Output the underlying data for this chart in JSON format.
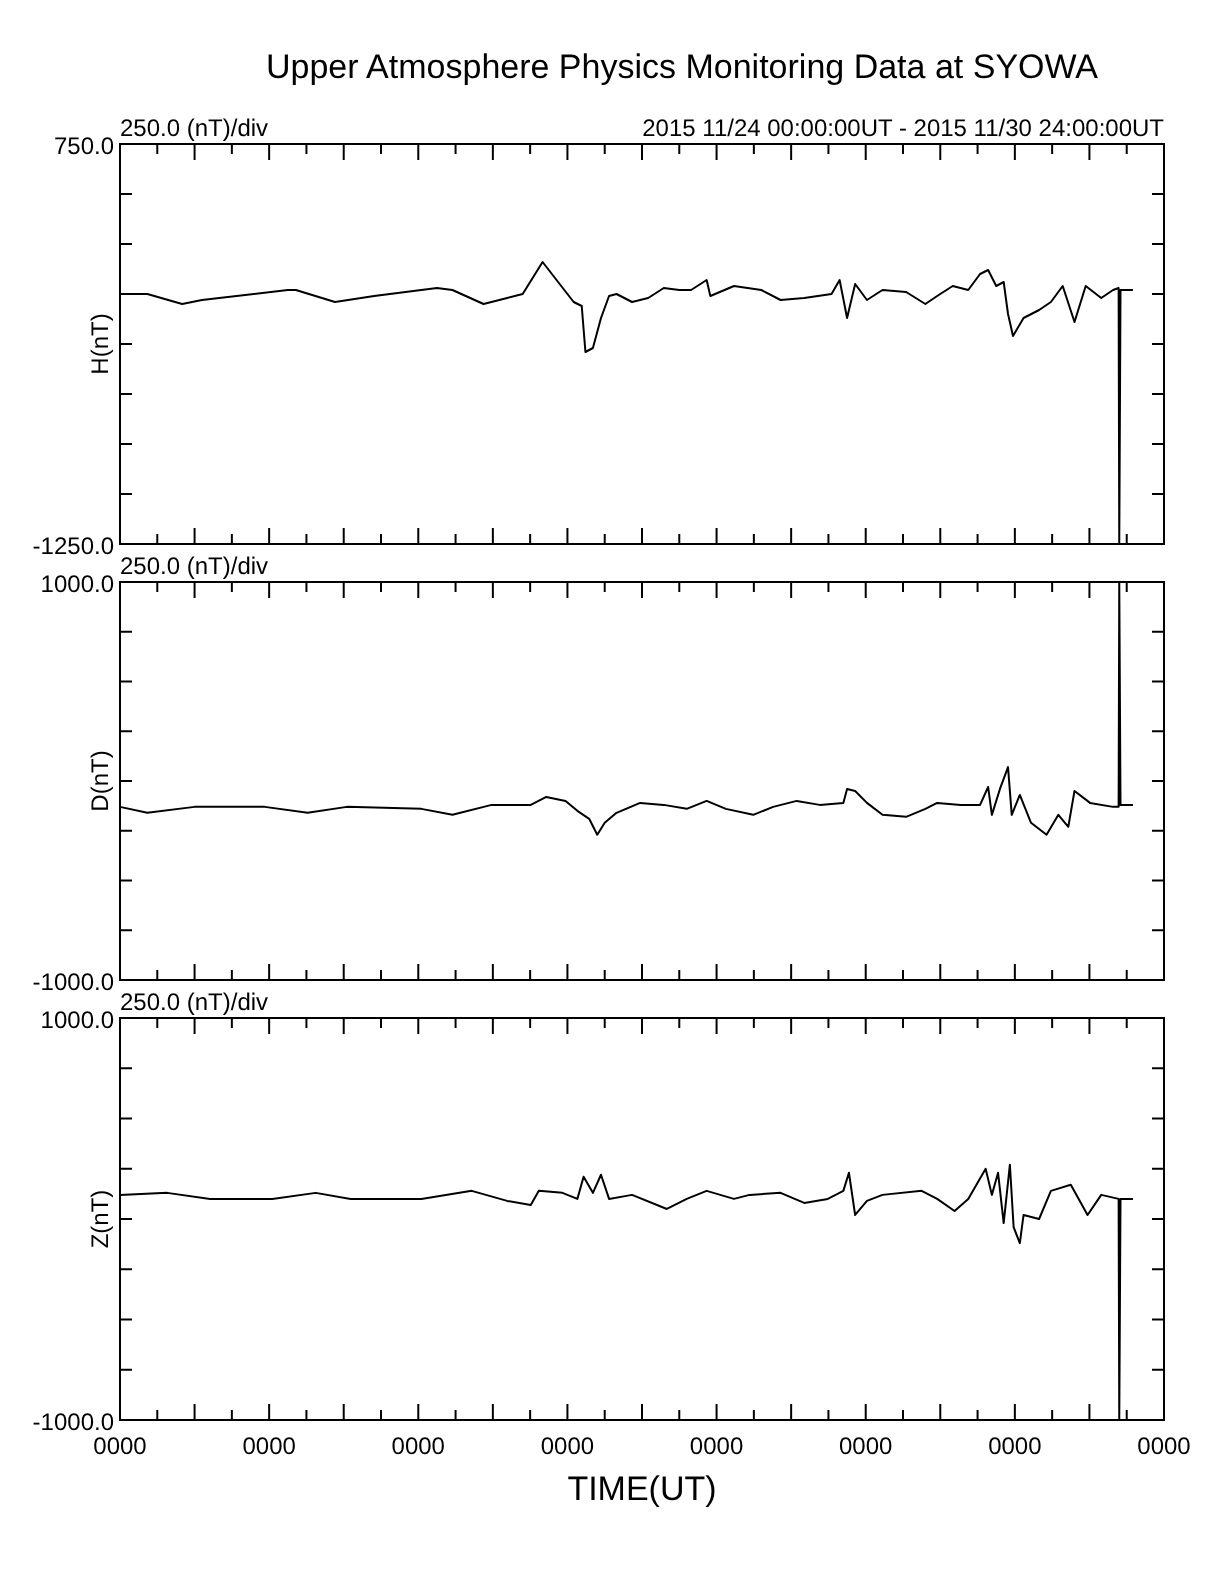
{
  "chart_data": [
    {
      "type": "line",
      "title": "Upper Atmosphere Physics Monitoring Data at SYOWA",
      "ylabel": "H(nT)",
      "annotations": [
        "250.0 (nT)/div",
        "2015 11/24 00:00:00UT - 2015 11/30 24:00:00UT"
      ],
      "xlim": [
        "2015-11-24T00:00",
        "2015-12-01T00:00"
      ],
      "xticks": [
        {
          "value": "2015-11-24T00:00",
          "label": null
        },
        {
          "value": "2015-11-24T06:00",
          "label": null
        },
        {
          "value": "2015-11-24T12:00",
          "label": null
        },
        {
          "value": "2015-11-24T18:00",
          "label": null
        },
        {
          "value": "2015-11-25T00:00",
          "label": null
        },
        {
          "value": "2015-11-25T06:00",
          "label": null
        },
        {
          "value": "2015-11-25T12:00",
          "label": null
        },
        {
          "value": "2015-11-25T18:00",
          "label": null
        },
        {
          "value": "2015-11-26T00:00",
          "label": null
        },
        {
          "value": "2015-11-26T06:00",
          "label": null
        },
        {
          "value": "2015-11-26T12:00",
          "label": null
        },
        {
          "value": "2015-11-26T18:00",
          "label": null
        },
        {
          "value": "2015-11-27T00:00",
          "label": null
        },
        {
          "value": "2015-11-27T06:00",
          "label": null
        },
        {
          "value": "2015-11-27T12:00",
          "label": null
        },
        {
          "value": "2015-11-27T18:00",
          "label": null
        },
        {
          "value": "2015-11-28T00:00",
          "label": null
        },
        {
          "value": "2015-11-28T06:00",
          "label": null
        },
        {
          "value": "2015-11-28T12:00",
          "label": null
        },
        {
          "value": "2015-11-28T18:00",
          "label": null
        },
        {
          "value": "2015-11-29T00:00",
          "label": null
        },
        {
          "value": "2015-11-29T06:00",
          "label": null
        },
        {
          "value": "2015-11-29T12:00",
          "label": null
        },
        {
          "value": "2015-11-29T18:00",
          "label": null
        },
        {
          "value": "2015-11-30T00:00",
          "label": null
        },
        {
          "value": "2015-11-30T06:00",
          "label": null
        },
        {
          "value": "2015-11-30T12:00",
          "label": null
        },
        {
          "value": "2015-11-30T18:00",
          "label": null
        },
        {
          "value": "2015-12-01T00:00",
          "label": null
        }
      ],
      "ylim": [
        -1250,
        750
      ],
      "yticks": [
        {
          "value": -1250,
          "label": "-1250.0"
        },
        {
          "value": -1000,
          "label": null
        },
        {
          "value": -750,
          "label": null
        },
        {
          "value": -500,
          "label": null
        },
        {
          "value": -250,
          "label": null
        },
        {
          "value": 0,
          "label": null
        },
        {
          "value": 250,
          "label": null
        },
        {
          "value": 500,
          "label": null
        },
        {
          "value": 750,
          "label": "750.0"
        }
      ],
      "tick_labels": "y",
      "series": [
        {
          "color": "#000000",
          "x": [
            "2015-11-24T00:00",
            "2015-11-24T04:24",
            "2015-11-24T10:00",
            "2015-11-24T13:12",
            "2015-11-25T03:00",
            "2015-11-25T04:18",
            "2015-11-25T10:36",
            "2015-11-25T16:54",
            "2015-11-26T03:00",
            "2015-11-26T05:30",
            "2015-11-26T10:30",
            "2015-11-26T14:18",
            "2015-11-26T16:48",
            "2015-11-26T20:00",
            "2015-11-26T22:30",
            "2015-11-27T01:00",
            "2015-11-27T02:18",
            "2015-11-27T02:54",
            "2015-11-27T04:06",
            "2015-11-27T05:24",
            "2015-11-27T06:42",
            "2015-11-27T07:54",
            "2015-11-27T10:24",
            "2015-11-27T13:00",
            "2015-11-27T15:30",
            "2015-11-27T18:00",
            "2015-11-27T19:54",
            "2015-11-27T22:24",
            "2015-11-27T23:00",
            "2015-11-28T02:48",
            "2015-11-28T07:12",
            "2015-11-28T10:18",
            "2015-11-28T14:06",
            "2015-11-28T18:30",
            "2015-11-28T19:48",
            "2015-11-28T21:00",
            "2015-11-28T22:18",
            "2015-11-29T00:12",
            "2015-11-29T02:42",
            "2015-11-29T06:30",
            "2015-11-29T09:36",
            "2015-11-29T11:30",
            "2015-11-29T14:00",
            "2015-11-29T16:30",
            "2015-11-29T18:24",
            "2015-11-29T19:42",
            "2015-11-29T21:00",
            "2015-11-29T22:12",
            "2015-11-29T22:54",
            "2015-11-29T23:42",
            "2015-11-30T01:24",
            "2015-11-30T03:54",
            "2015-11-30T05:48",
            "2015-11-30T07:42",
            "2015-11-30T09:36",
            "2015-11-30T11:24",
            "2015-11-30T13:54",
            "2015-11-30T15:48",
            "2015-11-30T16:42",
            "2015-11-30T16:48",
            "2015-11-30T17:00",
            "2015-11-30T19:00"
          ],
          "values": [
            0,
            0,
            -50,
            -30,
            20,
            20,
            -40,
            -10,
            30,
            20,
            -50,
            -20,
            0,
            160,
            60,
            -40,
            -60,
            -290,
            -270,
            -120,
            -10,
            0,
            -40,
            -20,
            30,
            20,
            20,
            70,
            -10,
            40,
            20,
            -30,
            -20,
            0,
            70,
            -120,
            50,
            -30,
            20,
            10,
            -50,
            -10,
            40,
            20,
            100,
            120,
            40,
            60,
            -100,
            -210,
            -120,
            -80,
            -40,
            40,
            -140,
            40,
            -20,
            20,
            30,
            -1250,
            20,
            20
          ]
        }
      ]
    },
    {
      "type": "line",
      "ylabel": "D(nT)",
      "annotations": [
        "250.0 (nT)/div"
      ],
      "xlim": [
        "2015-11-24T00:00",
        "2015-12-01T00:00"
      ],
      "xticks": [
        {
          "value": "2015-11-24T00:00",
          "label": null
        },
        {
          "value": "2015-11-24T06:00",
          "label": null
        },
        {
          "value": "2015-11-24T12:00",
          "label": null
        },
        {
          "value": "2015-11-24T18:00",
          "label": null
        },
        {
          "value": "2015-11-25T00:00",
          "label": null
        },
        {
          "value": "2015-11-25T06:00",
          "label": null
        },
        {
          "value": "2015-11-25T12:00",
          "label": null
        },
        {
          "value": "2015-11-25T18:00",
          "label": null
        },
        {
          "value": "2015-11-26T00:00",
          "label": null
        },
        {
          "value": "2015-11-26T06:00",
          "label": null
        },
        {
          "value": "2015-11-26T12:00",
          "label": null
        },
        {
          "value": "2015-11-26T18:00",
          "label": null
        },
        {
          "value": "2015-11-27T00:00",
          "label": null
        },
        {
          "value": "2015-11-27T06:00",
          "label": null
        },
        {
          "value": "2015-11-27T12:00",
          "label": null
        },
        {
          "value": "2015-11-27T18:00",
          "label": null
        },
        {
          "value": "2015-11-28T00:00",
          "label": null
        },
        {
          "value": "2015-11-28T06:00",
          "label": null
        },
        {
          "value": "2015-11-28T12:00",
          "label": null
        },
        {
          "value": "2015-11-28T18:00",
          "label": null
        },
        {
          "value": "2015-11-29T00:00",
          "label": null
        },
        {
          "value": "2015-11-29T06:00",
          "label": null
        },
        {
          "value": "2015-11-29T12:00",
          "label": null
        },
        {
          "value": "2015-11-29T18:00",
          "label": null
        },
        {
          "value": "2015-11-30T00:00",
          "label": null
        },
        {
          "value": "2015-11-30T06:00",
          "label": null
        },
        {
          "value": "2015-11-30T12:00",
          "label": null
        },
        {
          "value": "2015-11-30T18:00",
          "label": null
        },
        {
          "value": "2015-12-01T00:00",
          "label": null
        }
      ],
      "ylim": [
        -1000,
        1000
      ],
      "yticks": [
        {
          "value": -1000,
          "label": "-1000.0"
        },
        {
          "value": -750,
          "label": null
        },
        {
          "value": -500,
          "label": null
        },
        {
          "value": -250,
          "label": null
        },
        {
          "value": 0,
          "label": null
        },
        {
          "value": 250,
          "label": null
        },
        {
          "value": 500,
          "label": null
        },
        {
          "value": 750,
          "label": null
        },
        {
          "value": 1000,
          "label": "1000.0"
        }
      ],
      "tick_labels": "y",
      "series": [
        {
          "color": "#000000",
          "x": [
            "2015-11-24T00:00",
            "2015-11-24T04:24",
            "2015-11-24T12:00",
            "2015-11-24T23:18",
            "2015-11-25T06:12",
            "2015-11-25T12:30",
            "2015-11-26T00:30",
            "2015-11-26T05:30",
            "2015-11-26T11:48",
            "2015-11-26T18:06",
            "2015-11-26T20:36",
            "2015-11-26T23:42",
            "2015-11-27T01:36",
            "2015-11-27T03:30",
            "2015-11-27T04:48",
            "2015-11-27T06:00",
            "2015-11-27T07:54",
            "2015-11-27T11:42",
            "2015-11-27T15:30",
            "2015-11-27T19:12",
            "2015-11-27T22:24",
            "2015-11-28T01:30",
            "2015-11-28T05:54",
            "2015-11-28T09:06",
            "2015-11-28T12:54",
            "2015-11-28T16:36",
            "2015-11-28T20:24",
            "2015-11-28T21:00",
            "2015-11-28T22:18",
            "2015-11-29T00:12",
            "2015-11-29T02:42",
            "2015-11-29T06:30",
            "2015-11-29T09:36",
            "2015-11-29T11:30",
            "2015-11-29T15:18",
            "2015-11-29T18:24",
            "2015-11-29T19:42",
            "2015-11-29T20:18",
            "2015-11-29T21:36",
            "2015-11-29T22:54",
            "2015-11-29T23:30",
            "2015-11-30T00:48",
            "2015-11-30T02:36",
            "2015-11-30T05:06",
            "2015-11-30T07:00",
            "2015-11-30T08:36",
            "2015-11-30T09:36",
            "2015-11-30T12:06",
            "2015-11-30T15:48",
            "2015-11-30T16:42",
            "2015-11-30T16:48",
            "2015-11-30T17:00",
            "2015-11-30T19:00"
          ],
          "values": [
            -130,
            -160,
            -130,
            -130,
            -160,
            -130,
            -140,
            -170,
            -120,
            -120,
            -80,
            -100,
            -150,
            -190,
            -270,
            -210,
            -160,
            -110,
            -120,
            -140,
            -100,
            -140,
            -170,
            -130,
            -100,
            -120,
            -110,
            -40,
            -50,
            -110,
            -170,
            -180,
            -140,
            -110,
            -120,
            -120,
            -30,
            -170,
            -40,
            70,
            -170,
            -70,
            -210,
            -270,
            -170,
            -230,
            -50,
            -110,
            -130,
            -130,
            1000,
            -120,
            -120
          ]
        }
      ]
    },
    {
      "type": "line",
      "xlabel": "TIME(UT)",
      "ylabel": "Z(nT)",
      "annotations": [
        "250.0 (nT)/div"
      ],
      "xlim": [
        "2015-11-24T00:00",
        "2015-12-01T00:00"
      ],
      "xticks": [
        {
          "value": "2015-11-24T00:00",
          "label": "0000"
        },
        {
          "value": "2015-11-24T06:00",
          "label": null
        },
        {
          "value": "2015-11-24T12:00",
          "label": null
        },
        {
          "value": "2015-11-24T18:00",
          "label": null
        },
        {
          "value": "2015-11-25T00:00",
          "label": "0000"
        },
        {
          "value": "2015-11-25T06:00",
          "label": null
        },
        {
          "value": "2015-11-25T12:00",
          "label": null
        },
        {
          "value": "2015-11-25T18:00",
          "label": null
        },
        {
          "value": "2015-11-26T00:00",
          "label": "0000"
        },
        {
          "value": "2015-11-26T06:00",
          "label": null
        },
        {
          "value": "2015-11-26T12:00",
          "label": null
        },
        {
          "value": "2015-11-26T18:00",
          "label": null
        },
        {
          "value": "2015-11-27T00:00",
          "label": "0000"
        },
        {
          "value": "2015-11-27T06:00",
          "label": null
        },
        {
          "value": "2015-11-27T12:00",
          "label": null
        },
        {
          "value": "2015-11-27T18:00",
          "label": null
        },
        {
          "value": "2015-11-28T00:00",
          "label": "0000"
        },
        {
          "value": "2015-11-28T06:00",
          "label": null
        },
        {
          "value": "2015-11-28T12:00",
          "label": null
        },
        {
          "value": "2015-11-28T18:00",
          "label": null
        },
        {
          "value": "2015-11-29T00:00",
          "label": "0000"
        },
        {
          "value": "2015-11-29T06:00",
          "label": null
        },
        {
          "value": "2015-11-29T12:00",
          "label": null
        },
        {
          "value": "2015-11-29T18:00",
          "label": null
        },
        {
          "value": "2015-11-30T00:00",
          "label": "0000"
        },
        {
          "value": "2015-11-30T06:00",
          "label": null
        },
        {
          "value": "2015-11-30T12:00",
          "label": null
        },
        {
          "value": "2015-11-30T18:00",
          "label": null
        },
        {
          "value": "2015-12-01T00:00",
          "label": "0000"
        }
      ],
      "ylim": [
        -1000,
        1000
      ],
      "yticks": [
        {
          "value": -1000,
          "label": "-1000.0"
        },
        {
          "value": -750,
          "label": null
        },
        {
          "value": -500,
          "label": null
        },
        {
          "value": -250,
          "label": null
        },
        {
          "value": 0,
          "label": null
        },
        {
          "value": 250,
          "label": null
        },
        {
          "value": 500,
          "label": null
        },
        {
          "value": 750,
          "label": null
        },
        {
          "value": 1000,
          "label": "1000.0"
        }
      ],
      "series": [
        {
          "color": "#000000",
          "x": [
            "2015-11-24T00:00",
            "2015-11-24T07:36",
            "2015-11-24T14:30",
            "2015-11-25T00:30",
            "2015-11-25T07:30",
            "2015-11-25T13:06",
            "2015-11-26T00:30",
            "2015-11-26T08:36",
            "2015-11-26T14:18",
            "2015-11-26T18:06",
            "2015-11-26T19:24",
            "2015-11-26T23:12",
            "2015-11-27T01:36",
            "2015-11-27T02:36",
            "2015-11-27T04:06",
            "2015-11-27T05:24",
            "2015-11-27T06:42",
            "2015-11-27T10:24",
            "2015-11-27T16:00",
            "2015-11-27T19:12",
            "2015-11-27T22:24",
            "2015-11-28T02:48",
            "2015-11-28T05:18",
            "2015-11-28T10:18",
            "2015-11-28T14:06",
            "2015-11-28T17:54",
            "2015-11-28T20:24",
            "2015-11-28T21:18",
            "2015-11-28T22:18",
            "2015-11-29T00:12",
            "2015-11-29T02:42",
            "2015-11-29T09:00",
            "2015-11-29T11:30",
            "2015-11-29T14:18",
            "2015-11-29T16:30",
            "2015-11-29T19:18",
            "2015-11-29T20:18",
            "2015-11-29T21:18",
            "2015-11-29T22:12",
            "2015-11-29T23:12",
            "2015-11-29T23:48",
            "2015-11-30T00:48",
            "2015-11-30T01:24",
            "2015-11-30T03:54",
            "2015-11-30T05:48",
            "2015-11-30T09:00",
            "2015-11-30T11:42",
            "2015-11-30T13:54",
            "2015-11-30T16:42",
            "2015-11-30T16:48",
            "2015-11-30T17:00",
            "2015-11-30T19:00"
          ],
          "values": [
            120,
            130,
            100,
            100,
            130,
            100,
            100,
            140,
            90,
            70,
            140,
            130,
            100,
            210,
            130,
            220,
            100,
            120,
            50,
            100,
            140,
            100,
            120,
            130,
            80,
            100,
            140,
            230,
            20,
            90,
            120,
            140,
            100,
            40,
            100,
            250,
            120,
            230,
            -20,
            270,
            -40,
            -120,
            20,
            0,
            140,
            170,
            20,
            120,
            100,
            -1000,
            100,
            100
          ]
        }
      ]
    }
  ]
}
